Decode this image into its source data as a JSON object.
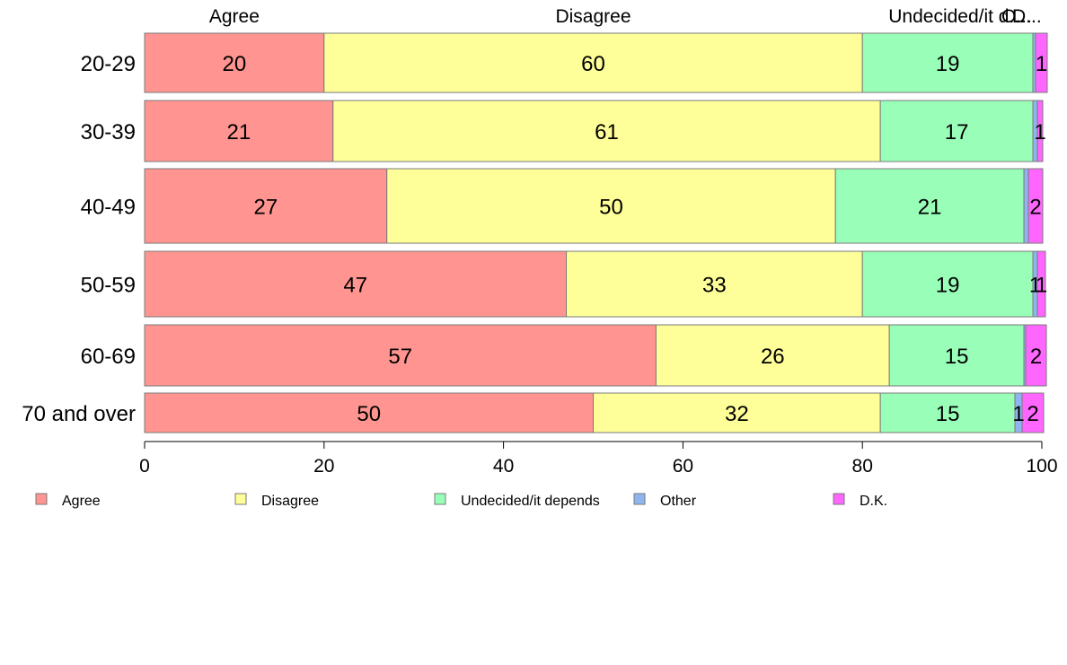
{
  "chart_data": {
    "type": "bar",
    "orientation": "horizontal",
    "stacked": true,
    "categories": [
      "20-29",
      "30-39",
      "40-49",
      "50-59",
      "60-69",
      "70 and over"
    ],
    "series": [
      {
        "name": "Agree",
        "color": "#ff9490",
        "values": [
          20,
          21,
          27,
          47,
          57,
          50
        ],
        "labels": [
          "20",
          "21",
          "27",
          "47",
          "57",
          "50"
        ]
      },
      {
        "name": "Disagree",
        "color": "#ffff99",
        "values": [
          60,
          61,
          50,
          33,
          26,
          32
        ],
        "labels": [
          "60",
          "61",
          "50",
          "33",
          "26",
          "32"
        ]
      },
      {
        "name": "Undecided/it depends",
        "color": "#99ffb8",
        "values": [
          19,
          17,
          21,
          19,
          15,
          15
        ],
        "labels": [
          "19",
          "17",
          "21",
          "19",
          "15",
          "15"
        ]
      },
      {
        "name": "Other",
        "color": "#8fb5f0",
        "values": [
          0.3,
          0.5,
          0.5,
          0.5,
          0.2,
          0.8
        ],
        "labels": [
          "",
          "",
          "",
          "1",
          "",
          "1"
        ]
      },
      {
        "name": "D.K.",
        "color": "#ff66ff",
        "values": [
          1.3,
          0.6,
          1.6,
          0.9,
          2.3,
          2.4
        ],
        "labels": [
          "1",
          "1",
          "2",
          "1",
          "2",
          "2"
        ]
      }
    ],
    "top_labels": [
      "Agree",
      "Disagree",
      "Undecided/it d...",
      "O...",
      "D..."
    ],
    "xlim": [
      0,
      100
    ],
    "xticks": [
      0,
      20,
      40,
      60,
      80,
      100
    ],
    "grid": false,
    "legend_position": "bottom"
  }
}
